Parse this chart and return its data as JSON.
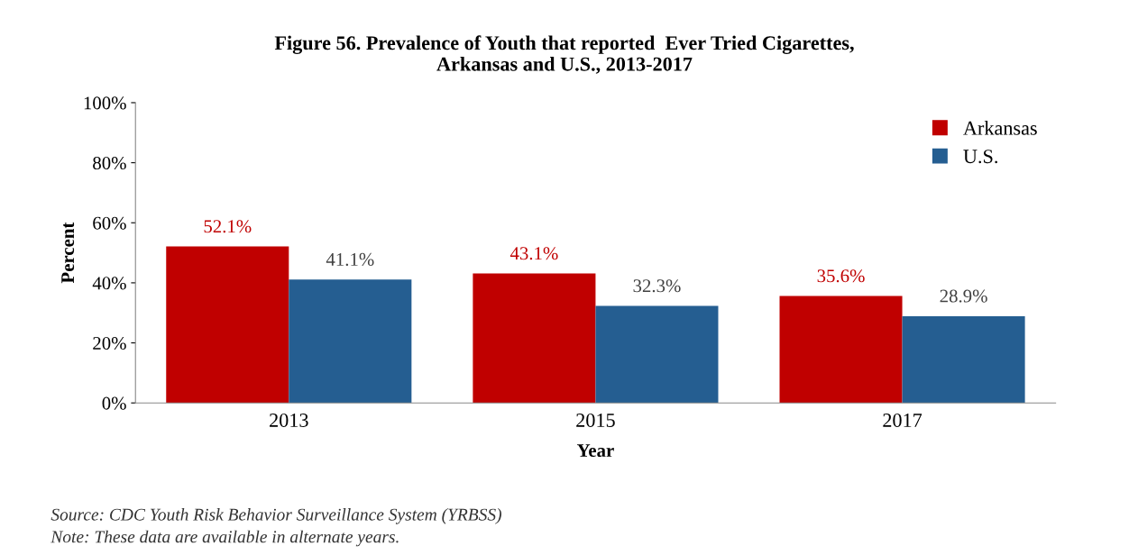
{
  "chart_data": {
    "type": "bar",
    "title": "Figure 56. Prevalence of Youth that reported  Ever Tried Cigarettes,\nArkansas and U.S., 2013-2017",
    "xlabel": "Year",
    "ylabel": "Percent",
    "categories": [
      "2013",
      "2015",
      "2017"
    ],
    "series": [
      {
        "name": "Arkansas",
        "color": "#c00000",
        "values": [
          52.1,
          43.1,
          35.6
        ],
        "value_labels": [
          "52.1%",
          "43.1%",
          "35.6%"
        ]
      },
      {
        "name": "U.S.",
        "color": "#255e91",
        "values": [
          41.1,
          32.3,
          28.9
        ],
        "value_labels": [
          "41.1%",
          "32.3%",
          "28.9%"
        ]
      }
    ],
    "ylim": [
      0,
      100
    ],
    "yticks": [
      {
        "value": 0,
        "label": "0%"
      },
      {
        "value": 20,
        "label": "20%"
      },
      {
        "value": 40,
        "label": "40%"
      },
      {
        "value": 60,
        "label": "60%"
      },
      {
        "value": 80,
        "label": "80%"
      },
      {
        "value": 100,
        "label": "100%"
      }
    ],
    "grid": false,
    "legend": "top right",
    "annotations": [
      "Source: CDC Youth Risk Behavior Surveillance System (YRBSS)",
      "Note: These data are available in alternate years."
    ]
  }
}
